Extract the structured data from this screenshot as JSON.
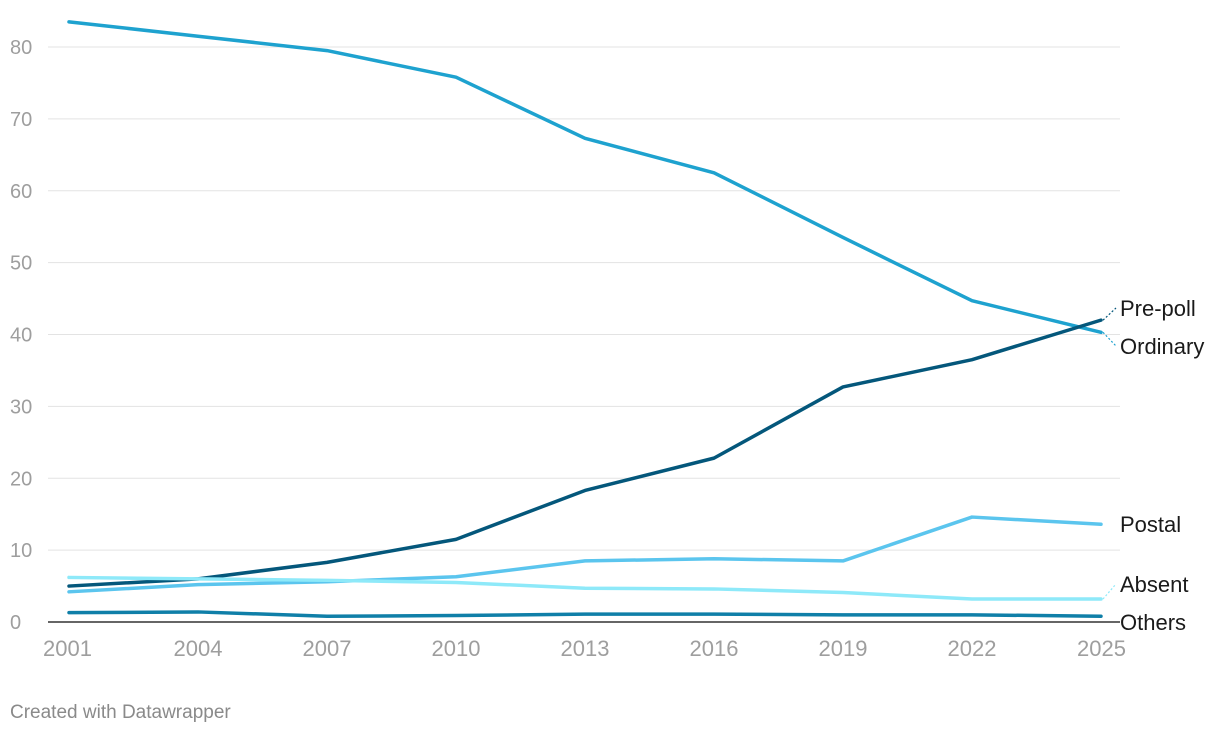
{
  "chart_data": {
    "type": "line",
    "x": [
      2001,
      2004,
      2007,
      2010,
      2013,
      2016,
      2019,
      2022,
      2025
    ],
    "ylim": [
      0,
      85
    ],
    "yticks": [
      0,
      10,
      20,
      30,
      40,
      50,
      60,
      70,
      80
    ],
    "grid": true,
    "legend": "direct labels at right end of lines",
    "series": [
      {
        "name": "Ordinary",
        "color": "#1ea2cf",
        "values": [
          83.5,
          81.5,
          79.5,
          75.8,
          67.3,
          62.5,
          53.5,
          44.7,
          40.3
        ]
      },
      {
        "name": "Pre-poll",
        "color": "#04577b",
        "values": [
          5.0,
          6.0,
          8.3,
          11.5,
          18.3,
          22.8,
          32.7,
          36.5,
          42.0
        ]
      },
      {
        "name": "Postal",
        "color": "#5bc5ee",
        "values": [
          4.2,
          5.2,
          5.6,
          6.3,
          8.5,
          8.8,
          8.5,
          14.6,
          13.6
        ]
      },
      {
        "name": "Absent",
        "color": "#8ee9f9",
        "values": [
          6.2,
          6.0,
          5.8,
          5.5,
          4.7,
          4.6,
          4.1,
          3.2,
          3.2
        ]
      },
      {
        "name": "Others",
        "color": "#0f7fa8",
        "values": [
          1.3,
          1.4,
          0.8,
          0.9,
          1.1,
          1.1,
          1.0,
          1.0,
          0.8
        ]
      }
    ]
  },
  "credit": "Created with Datawrapper"
}
